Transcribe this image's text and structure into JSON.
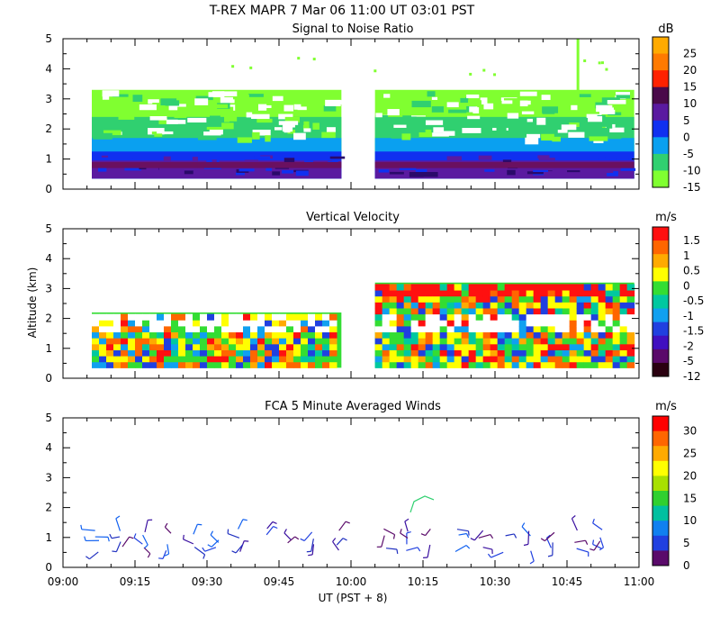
{
  "title": "T-REX   MAPR   7 Mar 06   11:00 UT   03:01   PST",
  "shared": {
    "x_ticks": [
      "09:00",
      "09:15",
      "09:30",
      "09:45",
      "10:00",
      "10:15",
      "10:30",
      "10:45",
      "11:00"
    ],
    "xlabel": "UT   (PST + 8)",
    "ylabel": "Altitude (km)",
    "y_ticks": [
      "0",
      "1",
      "2",
      "3",
      "4",
      "5"
    ]
  },
  "chart_data": [
    {
      "type": "heatmap",
      "title": "Signal to Noise Ratio",
      "units": "dB",
      "x_range": [
        "09:00",
        "11:00"
      ],
      "ylim": [
        0,
        5
      ],
      "data_segments": [
        [
          "09:06",
          "09:58"
        ],
        [
          "10:05",
          "10:59"
        ]
      ],
      "colorbar": {
        "labels": [
          "25",
          "20",
          "15",
          "10",
          "5",
          "0",
          "-5",
          "-10",
          "-15"
        ],
        "colors": [
          "#ffaa00",
          "#ff7a00",
          "#ff2200",
          "#4a0a4a",
          "#5a1aa0",
          "#1030f0",
          "#0aa0f0",
          "#30d070",
          "#80ff30"
        ]
      },
      "layers": [
        {
          "label": "-15",
          "top": 3.3,
          "color": "#80ff30"
        },
        {
          "label": "-10",
          "top": 2.4,
          "color": "#30d070"
        },
        {
          "label": "-5",
          "top": 1.7,
          "color": "#0aa0f0"
        },
        {
          "label": "0",
          "top": 1.25,
          "color": "#1030f0"
        },
        {
          "label": "5",
          "top": 0.95,
          "color": "#5a1aa0"
        }
      ]
    },
    {
      "type": "heatmap",
      "title": "Vertical Velocity",
      "units": "m/s",
      "x_range": [
        "09:00",
        "11:00"
      ],
      "ylim": [
        0,
        5
      ],
      "data_segments": [
        [
          "09:06",
          "09:58"
        ],
        [
          "10:05",
          "10:59"
        ]
      ],
      "colorbar": {
        "labels": [
          "1.5",
          "1",
          "0.5",
          "0",
          "-0.5",
          "-1",
          "-1.5",
          "-2",
          "-5",
          "-12"
        ],
        "colors": [
          "#ff1010",
          "#ff6600",
          "#ffaa00",
          "#ffff00",
          "#33dd33",
          "#00c8a0",
          "#10a0f0",
          "#2040e0",
          "#4010c0",
          "#5a0a6a",
          "#2a0010"
        ]
      }
    },
    {
      "type": "scatter",
      "title": "FCA 5 Minute Averaged Winds",
      "units": "m/s",
      "x_range": [
        "09:00",
        "11:00"
      ],
      "ylim": [
        0,
        5
      ],
      "colorbar": {
        "labels": [
          "30",
          "25",
          "20",
          "15",
          "10",
          "5",
          "0"
        ],
        "colors": [
          "#ff0000",
          "#ff6600",
          "#ffaa00",
          "#ffff00",
          "#a8e000",
          "#30d030",
          "#00c0a0",
          "#1080f0",
          "#2040e0",
          "#5a0a6a"
        ]
      },
      "barb_times": [
        "09:07",
        "09:12",
        "09:17",
        "09:22",
        "09:27",
        "09:32",
        "09:37",
        "09:42",
        "09:47",
        "09:52",
        "09:57",
        "10:07",
        "10:12",
        "10:17",
        "10:22",
        "10:27",
        "10:32",
        "10:37",
        "10:42",
        "10:47",
        "10:52"
      ],
      "barb_altitudes": [
        0.6,
        0.8,
        1.0,
        1.2
      ],
      "isolated_barb": {
        "time": "10:15",
        "altitude": 2.2,
        "speed": 15
      }
    }
  ]
}
